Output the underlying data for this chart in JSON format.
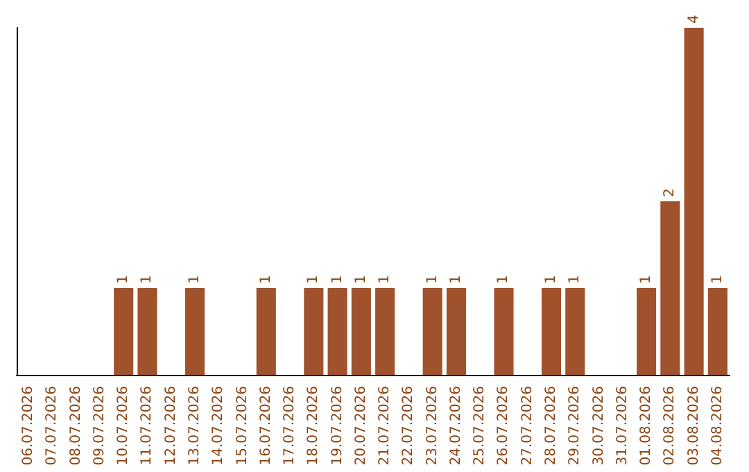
{
  "chart_data": {
    "type": "bar",
    "categories": [
      "06.07.2026",
      "07.07.2026",
      "08.07.2026",
      "09.07.2026",
      "10.07.2026",
      "11.07.2026",
      "12.07.2026",
      "13.07.2026",
      "14.07.2026",
      "15.07.2026",
      "16.07.2026",
      "17.07.2026",
      "18.07.2026",
      "19.07.2026",
      "20.07.2026",
      "21.07.2026",
      "22.07.2026",
      "23.07.2026",
      "24.07.2026",
      "25.07.2026",
      "26.07.2026",
      "27.07.2026",
      "28.07.2026",
      "29.07.2026",
      "30.07.2026",
      "31.07.2026",
      "01.08.2026",
      "02.08.2026",
      "03.08.2026",
      "04.08.2026"
    ],
    "values": [
      0,
      0,
      0,
      0,
      1,
      1,
      0,
      1,
      0,
      0,
      1,
      0,
      1,
      1,
      1,
      1,
      0,
      1,
      1,
      0,
      1,
      0,
      1,
      1,
      0,
      0,
      1,
      2,
      4,
      1
    ],
    "value_labels": [
      null,
      null,
      null,
      null,
      "1",
      "1",
      null,
      "1",
      null,
      null,
      "1",
      null,
      "1",
      "1",
      "1",
      "1",
      null,
      "1",
      "1",
      null,
      "1",
      null,
      "1",
      "1",
      null,
      null,
      "1",
      "2",
      "4",
      "1"
    ],
    "color": "#a0522d",
    "grid": false
  }
}
